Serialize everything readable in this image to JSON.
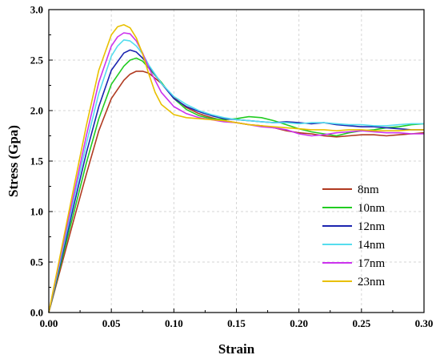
{
  "chart_data": {
    "type": "line",
    "title": "",
    "xlabel": "Strain",
    "ylabel": "Stress (Gpa)",
    "xlim": [
      0.0,
      0.3
    ],
    "ylim": [
      0.0,
      3.0
    ],
    "x_ticks": [
      0.0,
      0.05,
      0.1,
      0.15,
      0.2,
      0.25,
      0.3
    ],
    "x_tick_labels": [
      "0.00",
      "0.05",
      "0.10",
      "0.15",
      "0.20",
      "0.25",
      "0.30"
    ],
    "y_ticks": [
      0.0,
      0.5,
      1.0,
      1.5,
      2.0,
      2.5,
      3.0
    ],
    "y_tick_labels": [
      "0.0",
      "0.5",
      "1.0",
      "1.5",
      "2.0",
      "2.5",
      "3.0"
    ],
    "grid": true,
    "legend_position": "lower-right",
    "series": [
      {
        "name": "8nm",
        "color": "#b03a20",
        "x": [
          0,
          0.01,
          0.02,
          0.03,
          0.04,
          0.05,
          0.06,
          0.065,
          0.07,
          0.075,
          0.08,
          0.09,
          0.1,
          0.11,
          0.12,
          0.13,
          0.14,
          0.15,
          0.16,
          0.17,
          0.18,
          0.19,
          0.2,
          0.21,
          0.22,
          0.23,
          0.24,
          0.25,
          0.26,
          0.27,
          0.28,
          0.29,
          0.3
        ],
        "y": [
          0,
          0.46,
          0.92,
          1.37,
          1.8,
          2.12,
          2.3,
          2.36,
          2.39,
          2.39,
          2.37,
          2.27,
          2.13,
          2.03,
          1.97,
          1.93,
          1.9,
          1.88,
          1.86,
          1.85,
          1.83,
          1.8,
          1.78,
          1.77,
          1.75,
          1.74,
          1.75,
          1.76,
          1.76,
          1.75,
          1.76,
          1.77,
          1.78
        ]
      },
      {
        "name": "10nm",
        "color": "#22cc22",
        "x": [
          0,
          0.01,
          0.02,
          0.03,
          0.04,
          0.05,
          0.06,
          0.065,
          0.07,
          0.075,
          0.08,
          0.09,
          0.1,
          0.11,
          0.12,
          0.13,
          0.14,
          0.15,
          0.16,
          0.17,
          0.18,
          0.19,
          0.2,
          0.21,
          0.22,
          0.23,
          0.24,
          0.25,
          0.26,
          0.27,
          0.28,
          0.29,
          0.3
        ],
        "y": [
          0,
          0.5,
          0.99,
          1.48,
          1.92,
          2.26,
          2.44,
          2.5,
          2.52,
          2.49,
          2.42,
          2.28,
          2.12,
          2.01,
          1.95,
          1.92,
          1.91,
          1.92,
          1.94,
          1.93,
          1.9,
          1.86,
          1.82,
          1.79,
          1.77,
          1.75,
          1.78,
          1.8,
          1.81,
          1.83,
          1.84,
          1.86,
          1.87
        ]
      },
      {
        "name": "12nm",
        "color": "#1c24b0",
        "x": [
          0,
          0.01,
          0.02,
          0.03,
          0.04,
          0.05,
          0.06,
          0.065,
          0.07,
          0.075,
          0.08,
          0.09,
          0.1,
          0.11,
          0.12,
          0.13,
          0.14,
          0.15,
          0.16,
          0.17,
          0.18,
          0.19,
          0.2,
          0.21,
          0.22,
          0.23,
          0.24,
          0.25,
          0.26,
          0.27,
          0.28,
          0.29,
          0.3
        ],
        "y": [
          0,
          0.53,
          1.06,
          1.58,
          2.04,
          2.4,
          2.57,
          2.6,
          2.58,
          2.52,
          2.44,
          2.27,
          2.12,
          2.04,
          1.99,
          1.95,
          1.92,
          1.91,
          1.9,
          1.89,
          1.88,
          1.89,
          1.88,
          1.87,
          1.88,
          1.86,
          1.85,
          1.84,
          1.84,
          1.83,
          1.82,
          1.81,
          1.81
        ]
      },
      {
        "name": "14nm",
        "color": "#55ddee",
        "x": [
          0,
          0.01,
          0.02,
          0.03,
          0.04,
          0.05,
          0.055,
          0.06,
          0.065,
          0.07,
          0.075,
          0.08,
          0.09,
          0.1,
          0.11,
          0.12,
          0.13,
          0.14,
          0.15,
          0.16,
          0.17,
          0.18,
          0.19,
          0.2,
          0.21,
          0.22,
          0.23,
          0.24,
          0.25,
          0.26,
          0.27,
          0.28,
          0.29,
          0.3
        ],
        "y": [
          0,
          0.56,
          1.12,
          1.67,
          2.17,
          2.54,
          2.64,
          2.7,
          2.69,
          2.64,
          2.56,
          2.45,
          2.27,
          2.14,
          2.06,
          2.0,
          1.96,
          1.93,
          1.91,
          1.9,
          1.89,
          1.88,
          1.88,
          1.87,
          1.88,
          1.88,
          1.87,
          1.86,
          1.86,
          1.85,
          1.85,
          1.86,
          1.87,
          1.87
        ]
      },
      {
        "name": "17nm",
        "color": "#cc33ee",
        "x": [
          0,
          0.01,
          0.02,
          0.03,
          0.04,
          0.05,
          0.055,
          0.06,
          0.065,
          0.07,
          0.075,
          0.08,
          0.09,
          0.1,
          0.11,
          0.12,
          0.13,
          0.14,
          0.15,
          0.16,
          0.17,
          0.18,
          0.19,
          0.2,
          0.21,
          0.22,
          0.23,
          0.24,
          0.25,
          0.26,
          0.27,
          0.28,
          0.29,
          0.3
        ],
        "y": [
          0,
          0.59,
          1.17,
          1.75,
          2.28,
          2.64,
          2.73,
          2.77,
          2.76,
          2.69,
          2.57,
          2.42,
          2.18,
          2.04,
          1.97,
          1.93,
          1.91,
          1.89,
          1.88,
          1.86,
          1.84,
          1.83,
          1.81,
          1.77,
          1.75,
          1.76,
          1.78,
          1.79,
          1.8,
          1.79,
          1.78,
          1.78,
          1.77,
          1.77
        ]
      },
      {
        "name": "23nm",
        "color": "#e8c000",
        "x": [
          0,
          0.01,
          0.02,
          0.03,
          0.04,
          0.05,
          0.055,
          0.06,
          0.065,
          0.07,
          0.075,
          0.08,
          0.085,
          0.09,
          0.1,
          0.11,
          0.12,
          0.13,
          0.14,
          0.15,
          0.16,
          0.17,
          0.18,
          0.19,
          0.2,
          0.21,
          0.22,
          0.23,
          0.24,
          0.25,
          0.26,
          0.27,
          0.28,
          0.29,
          0.3
        ],
        "y": [
          0,
          0.62,
          1.24,
          1.85,
          2.4,
          2.75,
          2.83,
          2.85,
          2.82,
          2.72,
          2.56,
          2.36,
          2.18,
          2.06,
          1.96,
          1.93,
          1.92,
          1.91,
          1.9,
          1.88,
          1.86,
          1.85,
          1.84,
          1.83,
          1.82,
          1.81,
          1.81,
          1.8,
          1.81,
          1.81,
          1.8,
          1.8,
          1.8,
          1.81,
          1.81
        ]
      }
    ]
  }
}
